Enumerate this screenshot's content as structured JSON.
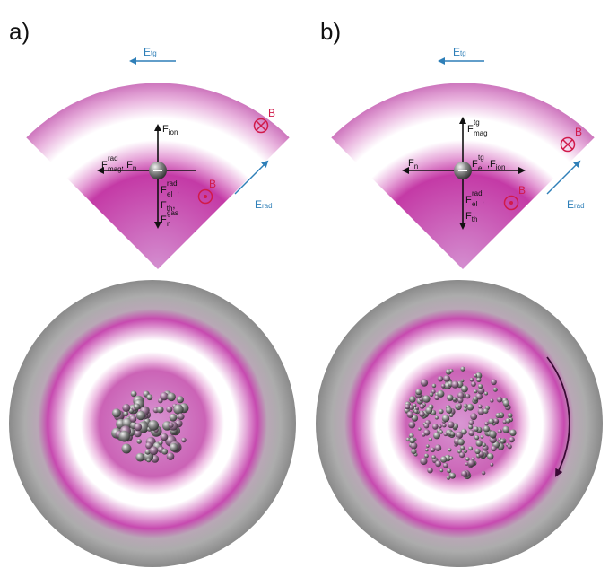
{
  "panels": [
    {
      "label": "a)",
      "e_tangential": {
        "main": "E",
        "sub": "tg"
      },
      "e_radial": {
        "main": "E",
        "sub": "rad"
      },
      "b_in": "B",
      "b_out": "B",
      "forces": {
        "up": {
          "main": "F",
          "sub": "ion"
        },
        "left_1": {
          "main": "F",
          "sup": "rad",
          "sub": "mag"
        },
        "left_2": {
          "main": ", F",
          "sub": "n"
        },
        "down_1": {
          "main": "F",
          "sup": "rad",
          "sub": "el",
          "tail": ","
        },
        "down_2": {
          "main": "F",
          "sub": "th",
          "tail": ","
        },
        "down_3": {
          "main": "F",
          "sup": "gas",
          "sub": "n"
        }
      },
      "cluster": "dense",
      "rotation_arrow": false
    },
    {
      "label": "b)",
      "e_tangential": {
        "main": "E",
        "sub": "tg"
      },
      "e_radial": {
        "main": "E",
        "sub": "rad"
      },
      "b_in": "B",
      "b_out": "B",
      "forces": {
        "up": {
          "main": "F",
          "sup": "tg",
          "sub": "mag"
        },
        "left": {
          "main": "F",
          "sub": "n"
        },
        "right_1": {
          "main": "F",
          "sup": "tg",
          "sub": "el",
          "tail": ","
        },
        "right_2": {
          "main": " F",
          "sub": "ion"
        },
        "down_1": {
          "main": "F",
          "sup": "rad",
          "sub": "el",
          "tail": ","
        },
        "down_2": {
          "main": "F",
          "sub": "th"
        }
      },
      "cluster": "dispersed",
      "rotation_arrow": true
    }
  ],
  "colors": {
    "magenta": "#c63ca8",
    "grey": "#8e8e8e",
    "field_arrow": "#2e7fb8",
    "b_field": "#d11a4a",
    "rotation_arrow": "#3a0a35"
  }
}
